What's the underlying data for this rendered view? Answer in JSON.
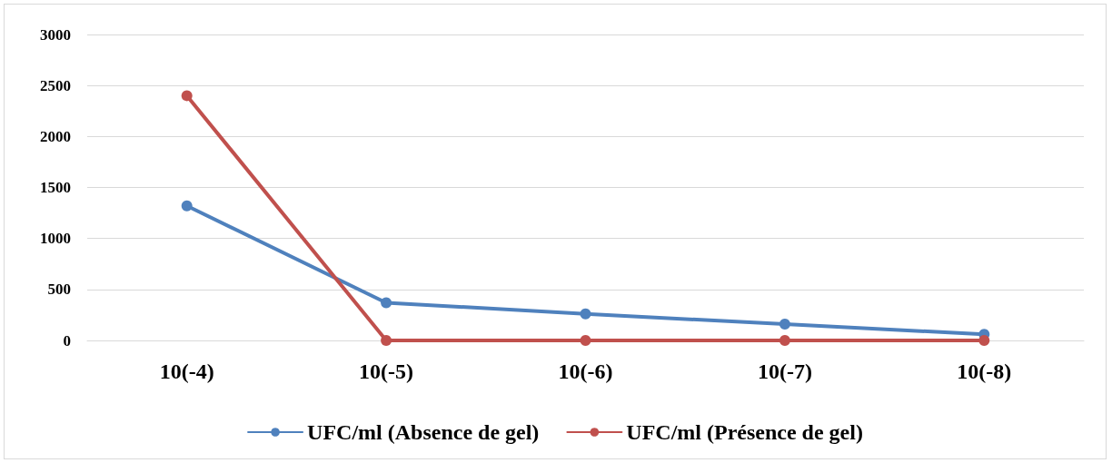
{
  "chart_data": {
    "type": "line",
    "categories": [
      "10(-4)",
      "10(-5)",
      "10(-6)",
      "10(-7)",
      "10(-8)"
    ],
    "series": [
      {
        "name": "UFC/ml (Absence de gel)",
        "color": "#4f81bd",
        "values": [
          1320,
          370,
          260,
          160,
          60
        ]
      },
      {
        "name": "UFC/ml (Présence de gel)",
        "color": "#c0504d",
        "values": [
          2400,
          0,
          0,
          0,
          0
        ]
      }
    ],
    "ylim": [
      0,
      3000
    ],
    "yticks": [
      0,
      500,
      1000,
      1500,
      2000,
      2500,
      3000
    ],
    "grid": "y",
    "legend": "bottom",
    "marker": "circle",
    "line_style": "solid"
  }
}
